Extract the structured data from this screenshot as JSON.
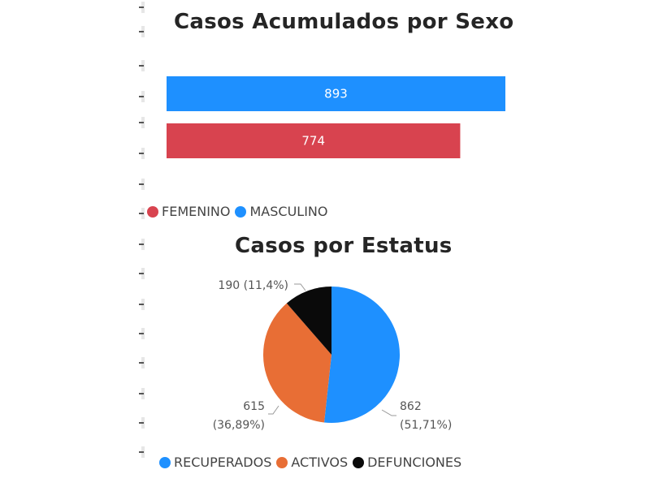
{
  "chart_data": [
    {
      "type": "bar",
      "orientation": "horizontal",
      "title": "Casos Acumulados por Sexo",
      "categories": [
        "MASCULINO",
        "FEMENINO"
      ],
      "values": [
        893,
        774
      ],
      "colors": [
        "#1e90ff",
        "#d8434f"
      ],
      "data_labels": [
        "893",
        "774"
      ],
      "legend": {
        "position": "bottom-left",
        "items": [
          {
            "name": "FEMENINO",
            "color": "#d8434f"
          },
          {
            "name": "MASCULINO",
            "color": "#1e90ff"
          }
        ]
      }
    },
    {
      "type": "pie",
      "title": "Casos por Estatus",
      "slices": [
        {
          "name": "RECUPERADOS",
          "value": 862,
          "percent": "51,71%",
          "color": "#1e90ff",
          "label_value": "862",
          "label_percent": "(51,71%)"
        },
        {
          "name": "ACTIVOS",
          "value": 615,
          "percent": "36,89%",
          "color": "#e86e35",
          "label_value": "615",
          "label_percent": "(36,89%)"
        },
        {
          "name": "DEFUNCIONES",
          "value": 190,
          "percent": "11,4%",
          "color": "#0a0a0a",
          "label_value": "190 (11,4%)",
          "label_percent": ""
        }
      ],
      "legend": {
        "position": "bottom",
        "items": [
          {
            "name": "RECUPERADOS",
            "color": "#1e90ff"
          },
          {
            "name": "ACTIVOS",
            "color": "#e86e35"
          },
          {
            "name": "DEFUNCIONES",
            "color": "#0a0a0a"
          }
        ]
      }
    }
  ]
}
